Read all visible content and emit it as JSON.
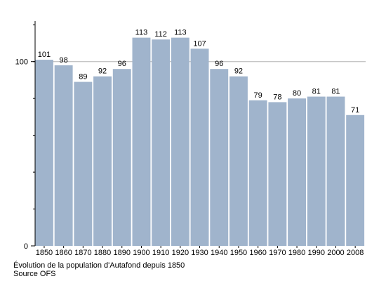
{
  "chart_data": {
    "type": "bar",
    "categories": [
      "1850",
      "1860",
      "1870",
      "1880",
      "1890",
      "1900",
      "1910",
      "1920",
      "1930",
      "1940",
      "1950",
      "1960",
      "1970",
      "1980",
      "1990",
      "2000",
      "2008"
    ],
    "values": [
      101,
      98,
      89,
      92,
      96,
      113,
      112,
      113,
      107,
      96,
      92,
      79,
      78,
      80,
      81,
      81,
      71
    ],
    "data_labels": [
      "101",
      "98",
      "89",
      "92",
      "96",
      "113",
      "112",
      "113",
      "107",
      "96",
      "92",
      "79",
      "78",
      "80",
      "81",
      "81",
      "71"
    ],
    "y_ticks": [
      0,
      100
    ],
    "y_tick_labels": [
      "0",
      "100"
    ],
    "ylim": [
      0,
      122
    ],
    "grid": true,
    "bar_color": "#a0b4cc",
    "grid_color": "#b3b3b3"
  },
  "caption": {
    "title": "Évolution de la population d'Autafond depuis 1850",
    "source": "Source OFS"
  }
}
